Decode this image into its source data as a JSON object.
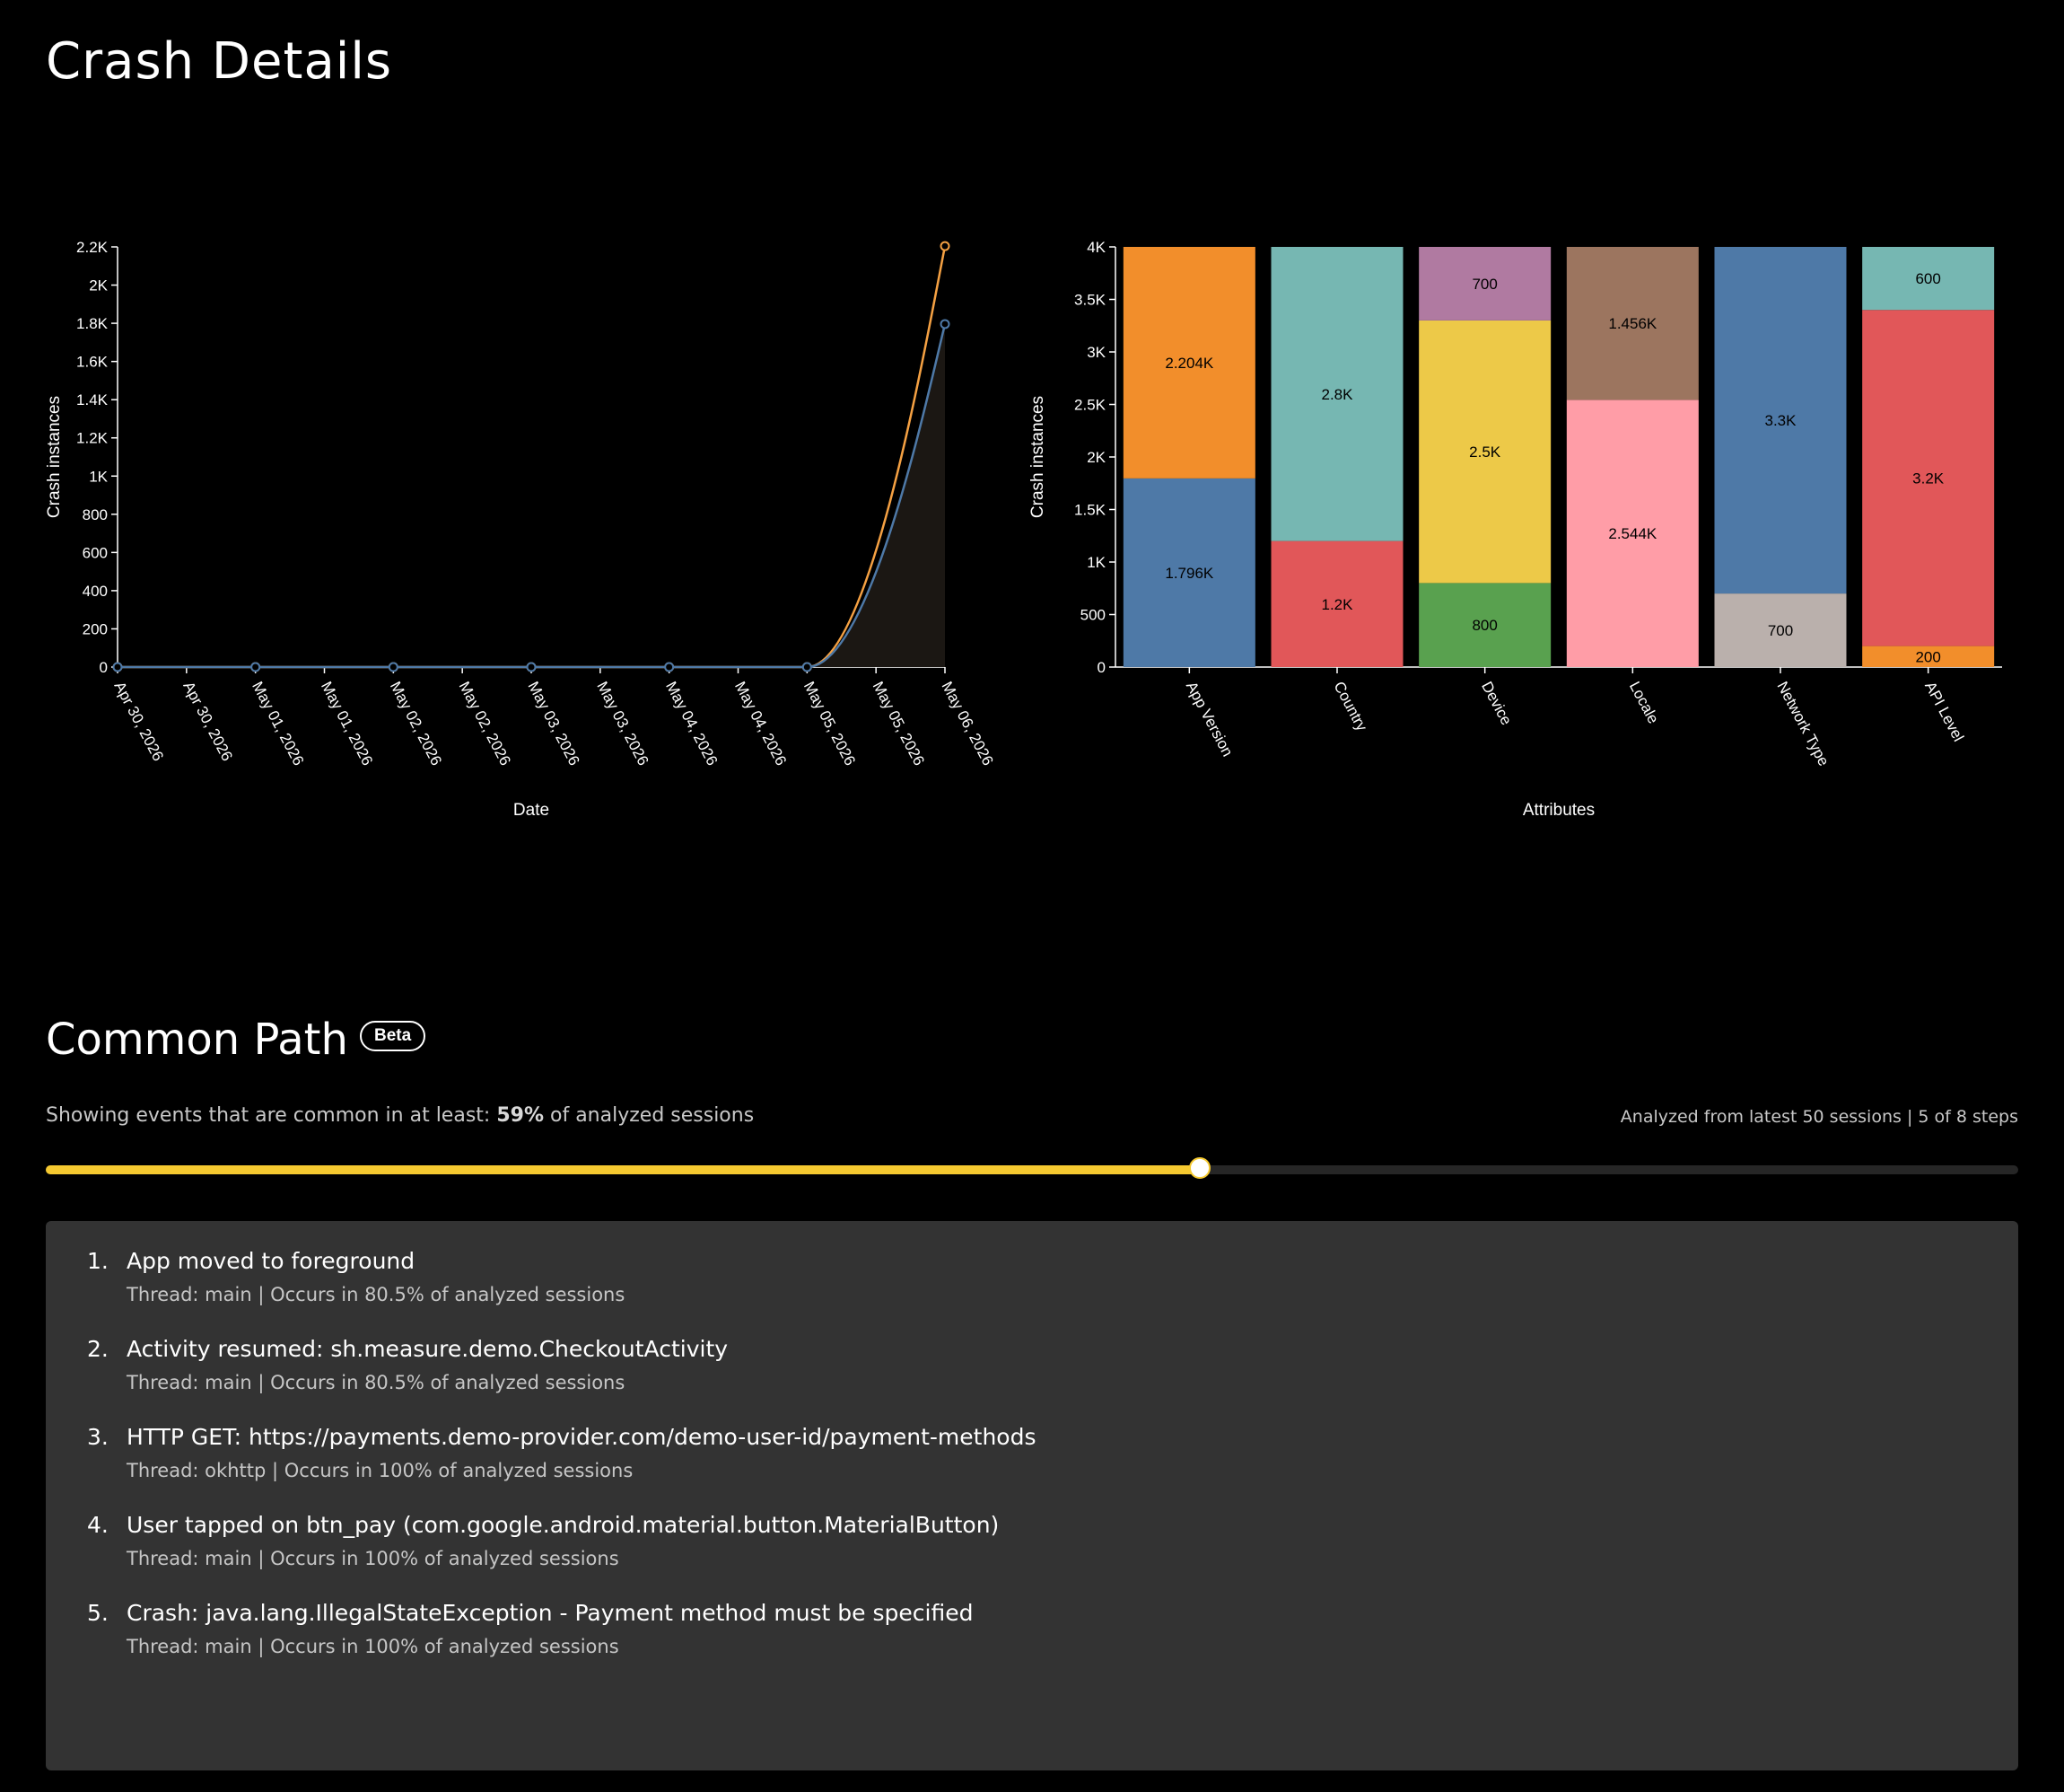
{
  "page": {
    "title": "Crash Details"
  },
  "chart_data": [
    {
      "type": "line",
      "xlabel": "Date",
      "ylabel": "Crash instances",
      "x": [
        "Apr 30, 2026",
        "May 01, 2026",
        "May 02, 2026",
        "May 03, 2026",
        "May 04, 2026",
        "May 05, 2026",
        "May 06, 2026"
      ],
      "x_tick_labels": [
        "Apr 30, 2026",
        "Apr 30, 2026",
        "May 01, 2026",
        "May 01, 2026",
        "May 02, 2026",
        "May 02, 2026",
        "May 03, 2026",
        "May 03, 2026",
        "May 04, 2026",
        "May 04, 2026",
        "May 05, 2026",
        "May 05, 2026",
        "May 06, 2026"
      ],
      "y_tick_labels": [
        "0",
        "200",
        "400",
        "600",
        "800",
        "1K",
        "1.2K",
        "1.4K",
        "1.6K",
        "1.8K",
        "2K",
        "2.2K"
      ],
      "ylim": [
        0,
        2200
      ],
      "series": [
        {
          "values": [
            0,
            0,
            0,
            0,
            0,
            0,
            2204
          ],
          "color": "#f5a143"
        },
        {
          "values": [
            0,
            0,
            0,
            0,
            0,
            0,
            1796
          ],
          "color": "#4e79a7"
        }
      ]
    },
    {
      "type": "bar",
      "stacked": true,
      "xlabel": "Attributes",
      "ylabel": "Crash instances",
      "ylim": [
        0,
        4000
      ],
      "y_tick_labels": [
        "0",
        "500",
        "1K",
        "1.5K",
        "2K",
        "2.5K",
        "3K",
        "3.5K",
        "4K"
      ],
      "categories": [
        {
          "name": "App Version",
          "segments": [
            {
              "value": 1796,
              "label": "1.796K",
              "color": "#4e79a7"
            },
            {
              "value": 2204,
              "label": "2.204K",
              "color": "#f28e2b"
            }
          ]
        },
        {
          "name": "Country",
          "segments": [
            {
              "value": 1200,
              "label": "1.2K",
              "color": "#e15759"
            },
            {
              "value": 2800,
              "label": "2.8K",
              "color": "#76b7b2"
            }
          ]
        },
        {
          "name": "Device",
          "segments": [
            {
              "value": 800,
              "label": "800",
              "color": "#59a14f"
            },
            {
              "value": 2500,
              "label": "2.5K",
              "color": "#edc948"
            },
            {
              "value": 700,
              "label": "700",
              "color": "#b07aa1"
            }
          ]
        },
        {
          "name": "Locale",
          "segments": [
            {
              "value": 2544,
              "label": "2.544K",
              "color": "#ff9da7"
            },
            {
              "value": 1456,
              "label": "1.456K",
              "color": "#9c755f"
            }
          ]
        },
        {
          "name": "Network Type",
          "segments": [
            {
              "value": 700,
              "label": "700",
              "color": "#bab0ac"
            },
            {
              "value": 3300,
              "label": "3.3K",
              "color": "#4e79a7"
            }
          ]
        },
        {
          "name": "API Level",
          "segments": [
            {
              "value": 200,
              "label": "200",
              "color": "#f28e2b"
            },
            {
              "value": 3200,
              "label": "3.2K",
              "color": "#e15759"
            },
            {
              "value": 600,
              "label": "600",
              "color": "#76b7b2"
            }
          ]
        }
      ]
    }
  ],
  "common_path": {
    "title": "Common Path",
    "badge": "Beta",
    "threshold_prefix": "Showing events that are common in at least: ",
    "threshold_value": "59%",
    "threshold_suffix": " of analyzed sessions",
    "analyzed_info": "Analyzed from latest 50 sessions | 5 of 8 steps",
    "slider_fraction": 0.585,
    "slider_color": "#f5c930",
    "steps": [
      {
        "num": "1.",
        "title": "App moved to foreground",
        "detail": "Thread: main | Occurs in 80.5% of analyzed sessions"
      },
      {
        "num": "2.",
        "title": "Activity resumed: sh.measure.demo.CheckoutActivity",
        "detail": "Thread: main | Occurs in 80.5% of analyzed sessions"
      },
      {
        "num": "3.",
        "title": "HTTP GET: https://payments.demo-provider.com/demo-user-id/payment-methods",
        "detail": "Thread: okhttp | Occurs in 100% of analyzed sessions"
      },
      {
        "num": "4.",
        "title": "User tapped on btn_pay (com.google.android.material.button.MaterialButton)",
        "detail": "Thread: main | Occurs in 100% of analyzed sessions"
      },
      {
        "num": "5.",
        "title": "Crash: java.lang.IllegalStateException - Payment method must be specified",
        "detail": "Thread: main | Occurs in 100% of analyzed sessions"
      }
    ]
  }
}
